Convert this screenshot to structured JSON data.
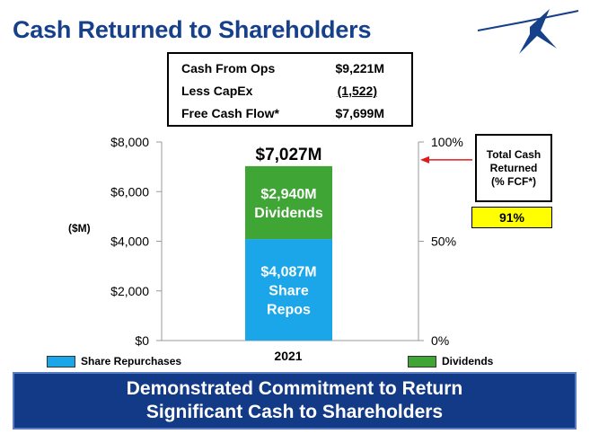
{
  "slide": {
    "title": "Cash Returned to Shareholders",
    "banner": [
      "Demonstrated Commitment to Return",
      "Significant Cash to Shareholders"
    ]
  },
  "cash_flow_box": {
    "rows": [
      {
        "label": "Cash From Ops",
        "value": "$9,221M"
      },
      {
        "label": "Less CapEx",
        "value": "(1,522)"
      },
      {
        "label": "Free Cash Flow*",
        "value": "$7,699M"
      }
    ]
  },
  "total_cash_returned": {
    "lines": [
      "Total Cash",
      "Returned",
      "(% FCF*)"
    ],
    "value": "91%"
  },
  "colors": {
    "title": "#17408B",
    "share_repurchases": "#1AA6E8",
    "dividends": "#3FA535",
    "highlight": "#FFFF00",
    "arrow": "#E01B1B",
    "banner": "#123A86"
  },
  "chart_data": {
    "type": "bar",
    "stacked": true,
    "categories": [
      "2021"
    ],
    "series": [
      {
        "name": "Share Repurchases",
        "values": [
          4087
        ],
        "label_lines": [
          "$4,087M",
          "Share",
          "Repos"
        ]
      },
      {
        "name": "Dividends",
        "values": [
          2940
        ],
        "label_lines": [
          "$2,940M",
          "Dividends"
        ]
      }
    ],
    "total_label": "$7,027M",
    "ylabel": "($M)",
    "ylim": [
      0,
      8000
    ],
    "y_ticks": [
      0,
      2000,
      4000,
      6000,
      8000
    ],
    "y_tick_labels": [
      "$0",
      "$2,000",
      "$4,000",
      "$6,000",
      "$8,000"
    ],
    "y2_ticks": [
      0,
      50,
      100
    ],
    "y2_tick_labels": [
      "0%",
      "50%",
      "100%"
    ],
    "y2lim": [
      0,
      100
    ],
    "arrow_at_percent": 91,
    "grid": false,
    "legend": "bottom"
  }
}
